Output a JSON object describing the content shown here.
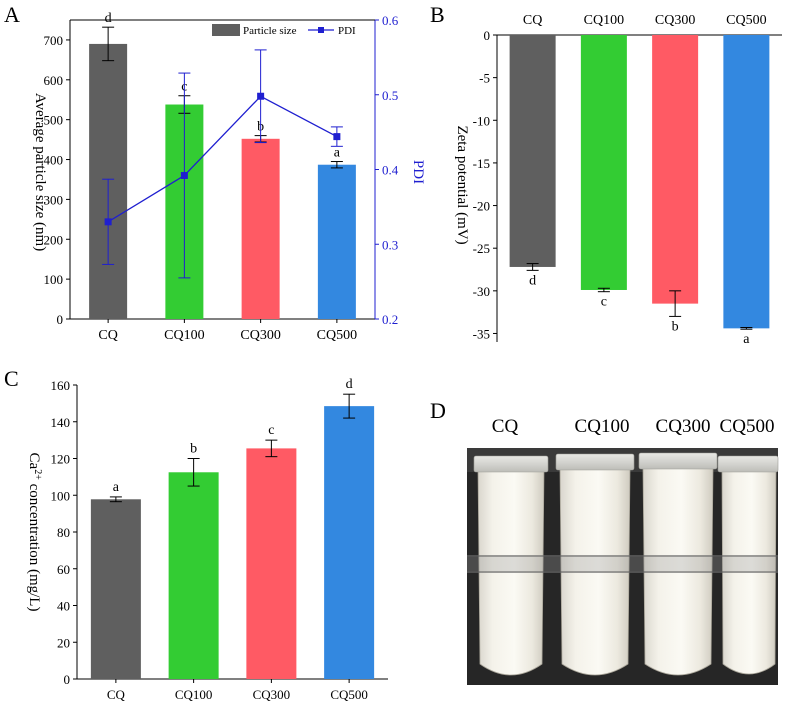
{
  "colors": {
    "cq": "#5f5f5f",
    "cq100": "#33cc33",
    "cq300": "#ff5a64",
    "cq500": "#3388e0",
    "pdi": "#1f1fd0",
    "axis": "#000000"
  },
  "chart_data": [
    {
      "panel": "A",
      "type": "bar",
      "categories": [
        "CQ",
        "CQ100",
        "CQ300",
        "CQ500"
      ],
      "series": [
        {
          "name": "Particle size",
          "values": [
            690,
            538,
            452,
            387
          ],
          "errors": [
            42,
            22,
            8,
            8
          ],
          "letters": [
            "d",
            "c",
            "b",
            "a"
          ]
        }
      ],
      "pdi": {
        "name": "PDI",
        "values": [
          0.33,
          0.392,
          0.498,
          0.444
        ],
        "errors": [
          0.057,
          0.137,
          0.062,
          0.013
        ]
      },
      "ylabel": "Average particle size (nm)",
      "ylim": [
        0,
        750
      ],
      "yticks": [
        "0",
        "100",
        "200",
        "300",
        "400",
        "500",
        "600",
        "700"
      ],
      "y2label": "PDI",
      "y2lim": [
        0.2,
        0.6
      ],
      "y2ticks": [
        "0.2",
        "0.3",
        "0.4",
        "0.5",
        "0.6"
      ],
      "legend": "top-right"
    },
    {
      "panel": "B",
      "type": "bar",
      "categories": [
        "CQ",
        "CQ100",
        "CQ300",
        "CQ500"
      ],
      "values": [
        -27.2,
        -29.9,
        -31.5,
        -34.4
      ],
      "errors": [
        0.4,
        0.2,
        1.5,
        0.1
      ],
      "letters": [
        "d",
        "c",
        "b",
        "a"
      ],
      "ylabel": "Zeta potential (mV)",
      "ylim": [
        -36,
        0
      ],
      "yticks": [
        "-35",
        "-30",
        "-25",
        "-20",
        "-15",
        "-10",
        "-5",
        "0"
      ]
    },
    {
      "panel": "C",
      "type": "bar",
      "categories": [
        "CQ",
        "CQ100",
        "CQ300",
        "CQ500"
      ],
      "values": [
        97.8,
        112.5,
        125.5,
        148.5
      ],
      "errors": [
        1.3,
        7.5,
        4.5,
        6.5
      ],
      "letters": [
        "a",
        "b",
        "c",
        "d"
      ],
      "ylabel_prefix": "Ca",
      "ylabel_sup": "2+",
      "ylabel_suffix": " concentration (mg/L)",
      "ylim": [
        0,
        160
      ],
      "yticks": [
        "0",
        "20",
        "40",
        "60",
        "80",
        "100",
        "120",
        "140",
        "160"
      ]
    }
  ],
  "panels": {
    "a": "A",
    "b": "B",
    "c": "C",
    "d": "D"
  },
  "photo": {
    "labels": [
      "CQ",
      "CQ100",
      "CQ300",
      "CQ500"
    ]
  }
}
